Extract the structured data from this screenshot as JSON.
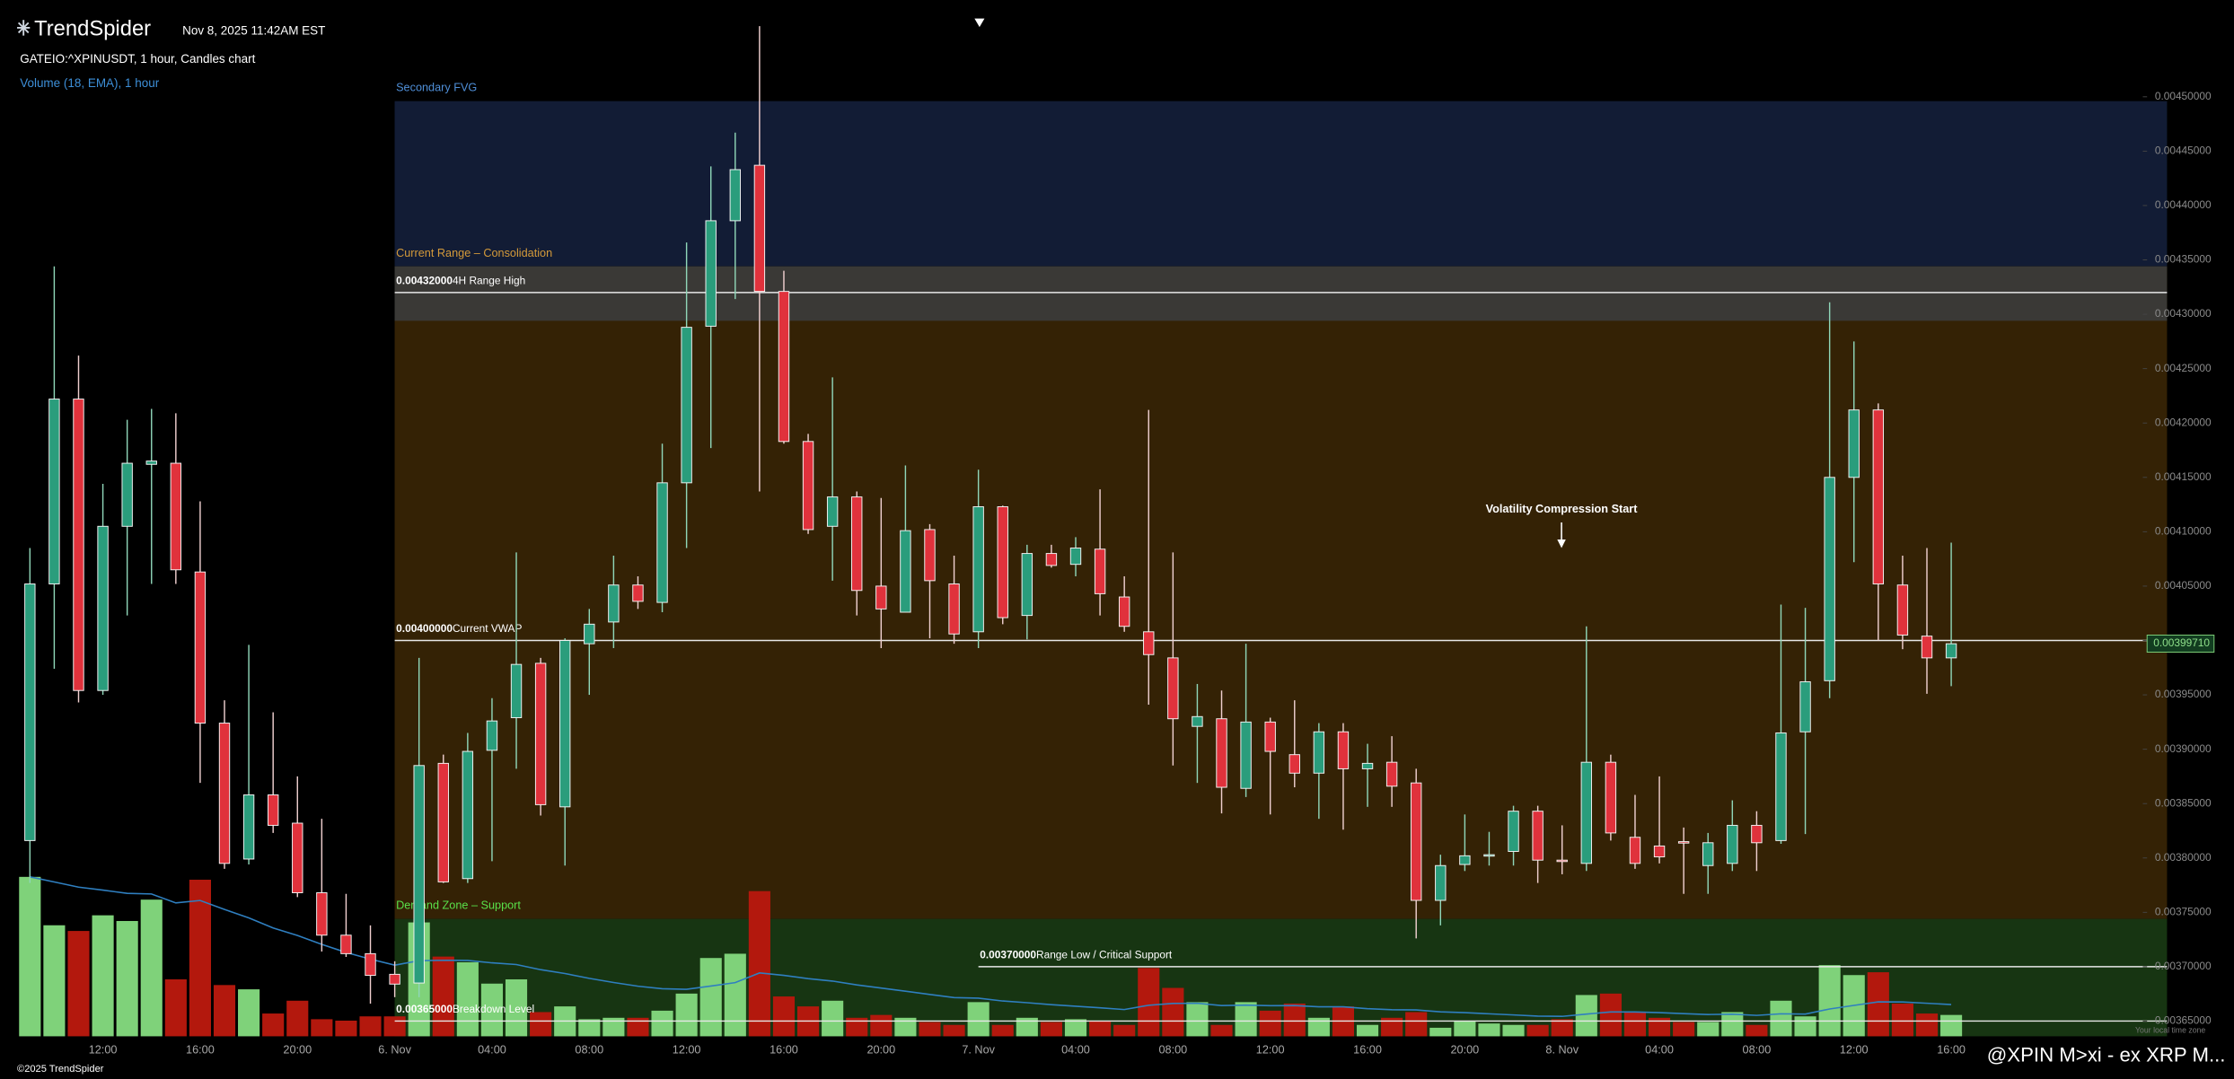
{
  "header": {
    "logo": "TrendSpider",
    "timestamp": "Nov 8, 2025 11:42AM EST",
    "symbol": "GATEIO:^XPINUSDT, 1 hour, Candles chart",
    "indicator": "Volume (18, EMA), 1 hour"
  },
  "footer": {
    "copyright": "©2025 TrendSpider",
    "timezone_note": "Your local time zone",
    "watermark": "@XPIN M>xi - ex XRP M..."
  },
  "chart_data": {
    "type": "candlestick",
    "categories": [
      null,
      null,
      null,
      "12:00",
      null,
      null,
      null,
      "16:00",
      null,
      null,
      null,
      "20:00",
      null,
      null,
      null,
      "6. Nov",
      null,
      null,
      null,
      "04:00",
      null,
      null,
      null,
      "08:00",
      null,
      null,
      null,
      "12:00",
      null,
      null,
      null,
      "16:00",
      null,
      null,
      null,
      "20:00",
      null,
      null,
      null,
      "7. Nov",
      null,
      null,
      null,
      "04:00",
      null,
      null,
      null,
      "08:00",
      null,
      null,
      null,
      "12:00",
      null,
      null,
      null,
      "16:00",
      null,
      null,
      null,
      "20:00",
      null,
      null,
      null,
      "8. Nov",
      null,
      null,
      null,
      "04:00",
      null,
      null,
      null,
      "08:00",
      null,
      null,
      null,
      "12:00",
      null,
      null,
      null,
      "16:00"
    ],
    "open": [
      0.003816,
      0.004052,
      0.004222,
      0.003954,
      0.004105,
      0.004162,
      0.004163,
      0.004063,
      0.003924,
      0.003799,
      0.003858,
      0.003832,
      0.003768,
      0.003729,
      0.003712,
      0.003693,
      0.003685,
      0.003887,
      0.003781,
      0.003899,
      0.003929,
      0.003979,
      0.003847,
      0.003997,
      0.004017,
      0.004051,
      0.004035,
      0.004145,
      0.004289,
      0.004386,
      0.004437,
      0.004321,
      0.004183,
      0.004105,
      0.004132,
      0.00405,
      0.004026,
      0.004102,
      0.004052,
      0.004008,
      0.004123,
      0.004023,
      0.00408,
      0.00407,
      0.004084,
      0.00404,
      0.004008,
      0.003984,
      0.003921,
      0.003928,
      0.003864,
      0.003925,
      0.003895,
      0.003878,
      0.003916,
      0.003882,
      0.003888,
      0.003869,
      0.003761,
      0.003794,
      0.003802,
      0.003806,
      0.003843,
      0.003798,
      0.003795,
      0.003888,
      0.003819,
      0.003811,
      0.003815,
      0.003793,
      0.003795,
      0.00383,
      0.003816,
      0.003916,
      0.003963,
      0.00415,
      0.004212,
      0.004051,
      0.004004,
      0.003984
    ],
    "high": [
      0.004085,
      0.004344,
      0.004262,
      0.004144,
      0.004203,
      0.004213,
      0.004209,
      0.004128,
      0.003945,
      0.003996,
      0.003934,
      0.003875,
      0.003836,
      0.003767,
      0.003738,
      0.003705,
      0.003984,
      0.003895,
      0.003915,
      0.003947,
      0.004081,
      0.003984,
      0.004002,
      0.004029,
      0.004078,
      0.004059,
      0.004181,
      0.004366,
      0.004436,
      0.004467,
      0.004565,
      0.00434,
      0.00419,
      0.004242,
      0.004137,
      0.004131,
      0.004161,
      0.004107,
      0.004078,
      0.004157,
      0.004124,
      0.004088,
      0.004088,
      0.004095,
      0.004139,
      0.004059,
      0.004212,
      0.004081,
      0.00396,
      0.003954,
      0.003997,
      0.003929,
      0.003945,
      0.003924,
      0.003924,
      0.003905,
      0.003912,
      0.003882,
      0.003803,
      0.00384,
      0.003824,
      0.003848,
      0.003848,
      0.00383,
      0.004013,
      0.003895,
      0.003858,
      0.003875,
      0.003828,
      0.003823,
      0.003853,
      0.003843,
      0.004033,
      0.00403,
      0.004311,
      0.004275,
      0.004218,
      0.004078,
      0.004085,
      0.00409
    ],
    "low": [
      0.003777,
      0.003974,
      0.003943,
      0.00395,
      0.004023,
      0.004052,
      0.004052,
      0.003869,
      0.00379,
      0.003794,
      0.003823,
      0.003764,
      0.003714,
      0.003709,
      0.003666,
      0.003672,
      0.003672,
      0.003777,
      0.003777,
      0.003797,
      0.003882,
      0.003839,
      0.003793,
      0.00395,
      0.003993,
      0.004029,
      0.004026,
      0.004085,
      0.004177,
      0.004314,
      0.004137,
      0.004181,
      0.004098,
      0.004055,
      0.004023,
      0.003993,
      0.004026,
      0.004002,
      0.003997,
      0.003993,
      0.004015,
      0.004001,
      0.004067,
      0.004059,
      0.004023,
      0.004008,
      0.003941,
      0.003885,
      0.003869,
      0.003841,
      0.003856,
      0.00384,
      0.003865,
      0.003836,
      0.003826,
      0.003847,
      0.003847,
      0.003726,
      0.003738,
      0.003788,
      0.003793,
      0.003793,
      0.003777,
      0.003785,
      0.003788,
      0.003816,
      0.00379,
      0.003795,
      0.003767,
      0.003767,
      0.003788,
      0.003788,
      0.003813,
      0.003822,
      0.003947,
      0.004072,
      0.004,
      0.003992,
      0.003951,
      0.003958
    ],
    "close": [
      0.004052,
      0.004222,
      0.003954,
      0.004105,
      0.004163,
      0.004165,
      0.004065,
      0.003924,
      0.003795,
      0.003858,
      0.00383,
      0.003768,
      0.003729,
      0.003712,
      0.003692,
      0.003684,
      0.003885,
      0.003778,
      0.003898,
      0.003926,
      0.003978,
      0.003849,
      0.004,
      0.004015,
      0.004051,
      0.004036,
      0.004145,
      0.004288,
      0.004386,
      0.004433,
      0.004321,
      0.004183,
      0.004102,
      0.004132,
      0.004046,
      0.004029,
      0.004101,
      0.004055,
      0.004006,
      0.004123,
      0.004021,
      0.00408,
      0.004069,
      0.004085,
      0.004043,
      0.004013,
      0.003987,
      0.003928,
      0.00393,
      0.003865,
      0.003925,
      0.003898,
      0.003878,
      0.003916,
      0.003882,
      0.003887,
      0.003866,
      0.003761,
      0.003793,
      0.003802,
      0.003803,
      0.003843,
      0.003798,
      0.003797,
      0.003888,
      0.003823,
      0.003795,
      0.003801,
      0.003814,
      0.003814,
      0.00383,
      0.003814,
      0.003915,
      0.003962,
      0.00415,
      0.004212,
      0.004052,
      0.004005,
      0.003984,
      0.003997
    ],
    "colors": {
      "up": "#2a9d7c",
      "down": "#e0323c"
    },
    "volume": [
      112,
      78,
      74,
      85,
      81,
      96,
      40,
      110,
      36,
      33,
      16,
      25,
      12,
      11,
      14,
      14,
      80,
      56,
      52,
      37,
      40,
      17,
      21,
      12,
      13,
      13,
      18,
      30,
      55,
      58,
      102,
      28,
      21,
      25,
      13,
      15,
      13,
      10,
      8,
      24,
      8,
      13,
      10,
      12,
      11,
      8,
      48,
      34,
      24,
      8,
      24,
      18,
      23,
      13,
      21,
      8,
      13,
      17,
      6,
      11,
      9,
      8,
      8,
      12,
      29,
      30,
      17,
      13,
      10,
      10,
      17,
      8,
      25,
      14,
      50,
      43,
      45,
      23,
      16,
      15
    ],
    "volume_ylim": [
      0,
      120
    ],
    "volume_colors": {
      "up": "#7fd27a",
      "down": "#b3180d",
      "ema": "#2f7fc0"
    },
    "ylim": [
      0.003636,
      0.004589
    ],
    "yticks": [
      {
        "value": 0.00365,
        "label": "0.00365000"
      },
      {
        "value": 0.0037,
        "label": "0.00370000"
      },
      {
        "value": 0.00375,
        "label": "0.00375000"
      },
      {
        "value": 0.0038,
        "label": "0.00380000"
      },
      {
        "value": 0.00385,
        "label": "0.00385000"
      },
      {
        "value": 0.0039,
        "label": "0.00390000"
      },
      {
        "value": 0.00395,
        "label": "0.00395000"
      },
      {
        "value": 0.004,
        "label": "0.00400000"
      },
      {
        "value": 0.00405,
        "label": "0.00405000"
      },
      {
        "value": 0.0041,
        "label": "0.00410000"
      },
      {
        "value": 0.00415,
        "label": "0.00415000"
      },
      {
        "value": 0.0042,
        "label": "0.00420000"
      },
      {
        "value": 0.00425,
        "label": "0.00425000"
      },
      {
        "value": 0.0043,
        "label": "0.00430000"
      },
      {
        "value": 0.00435,
        "label": "0.00435000"
      },
      {
        "value": 0.0044,
        "label": "0.00440000"
      },
      {
        "value": 0.00445,
        "label": "0.00445000"
      },
      {
        "value": 0.0045,
        "label": "0.00450000"
      }
    ],
    "zones": [
      {
        "label": "Secondary FVG",
        "range": [
          0.004344,
          0.004496
        ],
        "color": "#121c35",
        "label_color": "#4f8fd8"
      },
      {
        "label": "Current Range – Consolidation",
        "range": [
          0.003744,
          0.004344
        ],
        "color": "#342205",
        "label_color": "#d49a3a"
      },
      {
        "label": null,
        "range": [
          0.004294,
          0.004344
        ],
        "color": "#3a3936",
        "label_color": null
      },
      {
        "label": "Demand Zone – Support",
        "range": [
          0.003636,
          0.003744
        ],
        "color": "#173512",
        "label_color": "#59e04a"
      }
    ],
    "levels": [
      {
        "value": 0.00432,
        "value_label": "0.00432000",
        "label": "4H Range High"
      },
      {
        "value": 0.004,
        "value_label": "0.00400000",
        "label": "Current VWAP"
      },
      {
        "value": 0.0037,
        "value_label": "0.00370000",
        "label": "Range Low / Critical Support"
      },
      {
        "value": 0.00365,
        "value_label": "0.00365000",
        "label": "Breakdown Level"
      }
    ],
    "last_price": {
      "value": 0.0039971,
      "label": "0.00399710"
    },
    "annotations": [
      "Volatility Compression Start"
    ]
  }
}
